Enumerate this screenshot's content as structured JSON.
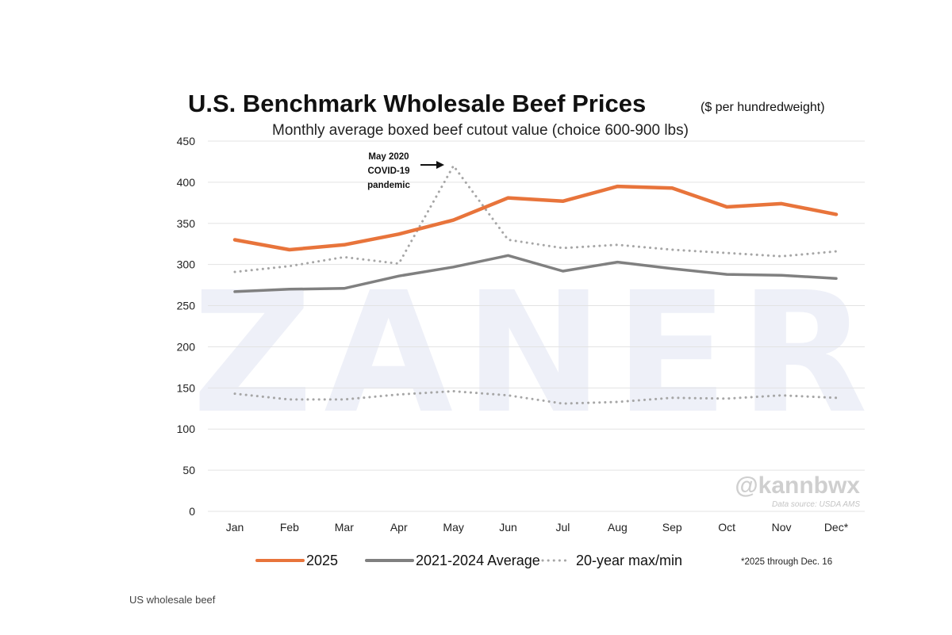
{
  "chart_data": {
    "type": "line",
    "title": "U.S. Benchmark Wholesale Beef Prices",
    "title_unit": "($ per hundredweight)",
    "subtitle": "Monthly average boxed beef cutout value (choice 600-900 lbs)",
    "categories": [
      "Jan",
      "Feb",
      "Mar",
      "Apr",
      "May",
      "Jun",
      "Jul",
      "Aug",
      "Sep",
      "Oct",
      "Nov",
      "Dec*"
    ],
    "ylim": [
      0,
      450
    ],
    "yticks": [
      0,
      50,
      100,
      150,
      200,
      250,
      300,
      350,
      400,
      450
    ],
    "grid": true,
    "series": [
      {
        "name": "2025",
        "color": "#e8743b",
        "style": "solid",
        "values": [
          330,
          318,
          324,
          337,
          354,
          381,
          377,
          395,
          393,
          370,
          374,
          361
        ]
      },
      {
        "name": "2021-2024 Average",
        "color": "#808080",
        "style": "solid",
        "values": [
          267,
          270,
          271,
          286,
          297,
          311,
          292,
          303,
          295,
          288,
          287,
          283
        ]
      },
      {
        "name": "20-year max/min",
        "color": "#a6a6a6",
        "style": "dotted",
        "values": [
          291,
          298,
          309,
          301,
          420,
          330,
          320,
          324,
          318,
          314,
          310,
          316
        ]
      },
      {
        "name": "20-year min",
        "color": "#a6a6a6",
        "style": "dotted",
        "legend": false,
        "values": [
          143,
          136,
          136,
          142,
          146,
          141,
          131,
          133,
          138,
          137,
          141,
          138
        ]
      }
    ],
    "annotation": {
      "lines": [
        "May 2020",
        "COVID-19",
        "pandemic"
      ],
      "arrow_to": "May"
    },
    "footnote": "*2025 through Dec. 16",
    "watermark": "ZANER",
    "handle": "@kannbwx",
    "source": "Data source: USDA AMS"
  },
  "caption": "US wholesale beef"
}
